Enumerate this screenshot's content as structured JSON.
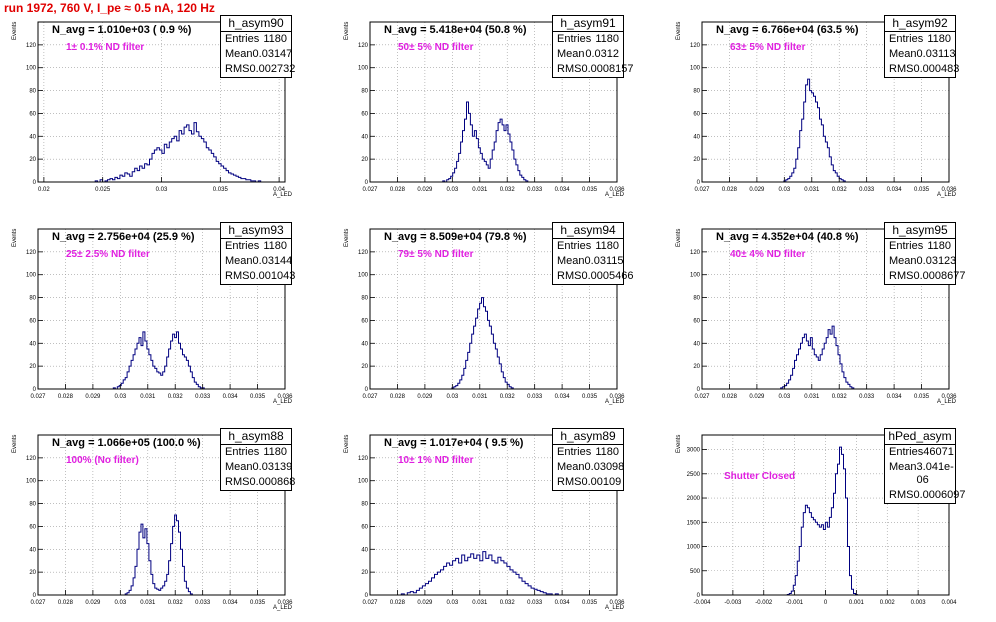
{
  "page_title": "run 1972,   760 V, I_pe ≈ 0.5 nA, 120 Hz",
  "colors": {
    "title": "#e00000",
    "annotation": "#e020e0",
    "hist": "#000080",
    "grid": "#999999"
  },
  "chart_data": [
    {
      "type": "histogram",
      "title": "h_asym90",
      "navg": "N_avg = 1.010e+03 ( 0.9 %)",
      "annotation": "1± 0.1% ND filter",
      "ylabel": "Events",
      "xlabel": "A_LED",
      "stats": {
        "entries": "1180",
        "mean": "0.03147",
        "rms": "0.002732"
      },
      "xlim": [
        0.0195,
        0.0405
      ],
      "ylim": [
        0,
        140
      ],
      "xticks": [
        0.02,
        0.025,
        0.03,
        0.035,
        0.04
      ],
      "xtick_labels": [
        "0.02",
        "0.025",
        "0.03",
        "0.035",
        "0.04"
      ],
      "yticks": [
        0,
        20,
        40,
        60,
        80,
        100,
        120
      ],
      "bins": {
        "center": 0.0315,
        "step": 0.00021,
        "values": [
          1,
          0,
          2,
          0,
          1,
          2,
          3,
          2,
          4,
          3,
          6,
          5,
          8,
          7,
          5,
          9,
          12,
          10,
          14,
          12,
          16,
          15,
          20,
          25,
          28,
          30,
          28,
          25,
          33,
          30,
          35,
          38,
          40,
          36,
          45,
          42,
          48,
          50,
          45,
          42,
          52,
          44,
          40,
          38,
          35,
          30,
          28,
          25,
          22,
          18,
          16,
          14,
          12,
          10,
          8,
          7,
          6,
          5,
          4,
          3,
          3,
          2,
          2,
          1,
          1,
          0,
          1,
          0
        ]
      }
    },
    {
      "type": "histogram",
      "title": "h_asym91",
      "navg": "N_avg = 5.418e+04 (50.8 %)",
      "annotation": "50± 5% ND filter",
      "ylabel": "Events",
      "xlabel": "A_LED",
      "stats": {
        "entries": "1180",
        "mean": "0.0312",
        "rms": "0.0008157"
      },
      "xlim": [
        0.027,
        0.036
      ],
      "ylim": [
        0,
        140
      ],
      "xticks": [
        0.027,
        0.028,
        0.029,
        0.03,
        0.031,
        0.032,
        0.033,
        0.034,
        0.035,
        0.036
      ],
      "xtick_labels": [
        "0.027",
        "0.028",
        "0.029",
        "0.03",
        "0.031",
        "0.032",
        "0.033",
        "0.034",
        "0.035",
        "0.036"
      ],
      "yticks": [
        0,
        20,
        40,
        60,
        80,
        100,
        120
      ],
      "bins": {
        "center": 0.0312,
        "step": 7.2e-05,
        "values": [
          1,
          0,
          2,
          3,
          5,
          8,
          12,
          18,
          25,
          35,
          45,
          55,
          70,
          60,
          50,
          40,
          45,
          38,
          30,
          25,
          20,
          18,
          15,
          12,
          20,
          28,
          35,
          45,
          52,
          55,
          50,
          45,
          50,
          42,
          35,
          28,
          20,
          15,
          10,
          6,
          4,
          2,
          1
        ]
      }
    },
    {
      "type": "histogram",
      "title": "h_asym92",
      "navg": "N_avg = 6.766e+04 (63.5 %)",
      "annotation": "63± 5% ND filter",
      "ylabel": "Events",
      "xlabel": "A_LED",
      "stats": {
        "entries": "1180",
        "mean": "0.03113",
        "rms": "0.000483"
      },
      "xlim": [
        0.027,
        0.036
      ],
      "ylim": [
        0,
        140
      ],
      "xticks": [
        0.027,
        0.028,
        0.029,
        0.03,
        0.031,
        0.032,
        0.033,
        0.034,
        0.035,
        0.036
      ],
      "xtick_labels": [
        "0.027",
        "0.028",
        "0.029",
        "0.03",
        "0.031",
        "0.032",
        "0.033",
        "0.034",
        "0.035",
        "0.036"
      ],
      "yticks": [
        0,
        20,
        40,
        60,
        80,
        100,
        120
      ],
      "bins": {
        "center": 0.0311,
        "step": 7.2e-05,
        "values": [
          1,
          2,
          3,
          5,
          8,
          12,
          20,
          30,
          45,
          55,
          70,
          85,
          90,
          80,
          78,
          75,
          70,
          65,
          55,
          50,
          40,
          35,
          30,
          22,
          15,
          10,
          8,
          5,
          3,
          2,
          1
        ]
      }
    },
    {
      "type": "histogram",
      "title": "h_asym93",
      "navg": "N_avg = 2.756e+04 (25.9 %)",
      "annotation": "25± 2.5% ND filter",
      "ylabel": "Events",
      "xlabel": "A_LED",
      "stats": {
        "entries": "1180",
        "mean": "0.03144",
        "rms": "0.001043"
      },
      "xlim": [
        0.027,
        0.036
      ],
      "ylim": [
        0,
        140
      ],
      "xticks": [
        0.027,
        0.028,
        0.029,
        0.03,
        0.031,
        0.032,
        0.033,
        0.034,
        0.035,
        0.036
      ],
      "xtick_labels": [
        "0.027",
        "0.028",
        "0.029",
        "0.03",
        "0.031",
        "0.032",
        "0.033",
        "0.034",
        "0.035",
        "0.036"
      ],
      "yticks": [
        0,
        20,
        40,
        60,
        80,
        100,
        120
      ],
      "bins": {
        "center": 0.0314,
        "step": 7.2e-05,
        "values": [
          1,
          0,
          2,
          3,
          5,
          8,
          10,
          15,
          20,
          25,
          30,
          35,
          40,
          45,
          38,
          50,
          42,
          35,
          30,
          25,
          20,
          18,
          15,
          14,
          12,
          15,
          20,
          28,
          35,
          42,
          48,
          45,
          50,
          40,
          35,
          30,
          28,
          25,
          20,
          15,
          10,
          6,
          4,
          2,
          1,
          1
        ]
      }
    },
    {
      "type": "histogram",
      "title": "h_asym94",
      "navg": "N_avg = 8.509e+04 (79.8 %)",
      "annotation": "79± 5% ND filter",
      "ylabel": "Events",
      "xlabel": "A_LED",
      "stats": {
        "entries": "1180",
        "mean": "0.03115",
        "rms": "0.0005466"
      },
      "xlim": [
        0.027,
        0.036
      ],
      "ylim": [
        0,
        140
      ],
      "xticks": [
        0.027,
        0.028,
        0.029,
        0.03,
        0.031,
        0.032,
        0.033,
        0.034,
        0.035,
        0.036
      ],
      "xtick_labels": [
        "0.027",
        "0.028",
        "0.029",
        "0.03",
        "0.031",
        "0.032",
        "0.033",
        "0.034",
        "0.035",
        "0.036"
      ],
      "yticks": [
        0,
        20,
        40,
        60,
        80,
        100,
        120
      ],
      "bins": {
        "center": 0.0311,
        "step": 7.2e-05,
        "values": [
          1,
          2,
          3,
          5,
          8,
          12,
          18,
          25,
          32,
          40,
          48,
          55,
          62,
          70,
          75,
          80,
          72,
          68,
          60,
          55,
          48,
          40,
          35,
          28,
          22,
          15,
          10,
          6,
          4,
          2,
          1
        ]
      }
    },
    {
      "type": "histogram",
      "title": "h_asym95",
      "navg": "N_avg = 4.352e+04 (40.8 %)",
      "annotation": "40± 4% ND filter",
      "ylabel": "Events",
      "xlabel": "A_LED",
      "stats": {
        "entries": "1180",
        "mean": "0.03123",
        "rms": "0.0008677"
      },
      "xlim": [
        0.027,
        0.036
      ],
      "ylim": [
        0,
        140
      ],
      "xticks": [
        0.027,
        0.028,
        0.029,
        0.03,
        0.031,
        0.032,
        0.033,
        0.034,
        0.035,
        0.036
      ],
      "xtick_labels": [
        "0.027",
        "0.028",
        "0.029",
        "0.03",
        "0.031",
        "0.032",
        "0.033",
        "0.034",
        "0.035",
        "0.036"
      ],
      "yticks": [
        0,
        20,
        40,
        60,
        80,
        100,
        120
      ],
      "bins": {
        "center": 0.0312,
        "step": 7.2e-05,
        "values": [
          1,
          2,
          3,
          5,
          8,
          12,
          18,
          25,
          30,
          35,
          40,
          45,
          48,
          42,
          38,
          45,
          35,
          30,
          28,
          25,
          30,
          35,
          40,
          45,
          52,
          48,
          55,
          45,
          38,
          30,
          22,
          15,
          10,
          6,
          4,
          2,
          1
        ]
      }
    },
    {
      "type": "histogram",
      "title": "h_asym88",
      "navg": "N_avg = 1.066e+05 (100.0 %)",
      "annotation": "100% (No filter)",
      "ylabel": "Events",
      "xlabel": "A_LED",
      "stats": {
        "entries": "1180",
        "mean": "0.03139",
        "rms": "0.000868"
      },
      "xlim": [
        0.027,
        0.036
      ],
      "ylim": [
        0,
        140
      ],
      "xticks": [
        0.027,
        0.028,
        0.029,
        0.03,
        0.031,
        0.032,
        0.033,
        0.034,
        0.035,
        0.036
      ],
      "xtick_labels": [
        "0.027",
        "0.028",
        "0.029",
        "0.03",
        "0.031",
        "0.032",
        "0.033",
        "0.034",
        "0.035",
        "0.036"
      ],
      "yticks": [
        0,
        20,
        40,
        60,
        80,
        100,
        120
      ],
      "bins": {
        "center": 0.0314,
        "step": 7.2e-05,
        "values": [
          1,
          2,
          4,
          8,
          15,
          25,
          40,
          55,
          62,
          50,
          58,
          45,
          30,
          18,
          10,
          6,
          5,
          4,
          6,
          8,
          12,
          18,
          30,
          45,
          60,
          70,
          65,
          55,
          40,
          25,
          12,
          6,
          3,
          1
        ]
      }
    },
    {
      "type": "histogram",
      "title": "h_asym89",
      "navg": "N_avg = 1.017e+04 ( 9.5 %)",
      "annotation": "10± 1% ND filter",
      "ylabel": "Events",
      "xlabel": "A_LED",
      "stats": {
        "entries": "1180",
        "mean": "0.03098",
        "rms": "0.00109"
      },
      "xlim": [
        0.027,
        0.036
      ],
      "ylim": [
        0,
        140
      ],
      "xticks": [
        0.027,
        0.028,
        0.029,
        0.03,
        0.031,
        0.032,
        0.033,
        0.034,
        0.035,
        0.036
      ],
      "xtick_labels": [
        "0.027",
        "0.028",
        "0.029",
        "0.03",
        "0.031",
        "0.032",
        "0.033",
        "0.034",
        "0.035",
        "0.036"
      ],
      "yticks": [
        0,
        20,
        40,
        60,
        80,
        100,
        120
      ],
      "bins": {
        "center": 0.031,
        "step": 0.00011,
        "values": [
          1,
          0,
          2,
          3,
          2,
          4,
          6,
          8,
          10,
          12,
          15,
          18,
          20,
          22,
          25,
          28,
          26,
          30,
          32,
          28,
          35,
          30,
          33,
          36,
          32,
          35,
          30,
          38,
          32,
          35,
          30,
          28,
          33,
          30,
          28,
          25,
          22,
          20,
          18,
          15,
          12,
          10,
          8,
          6,
          5,
          4,
          3,
          2,
          1,
          1,
          0,
          1
        ]
      }
    },
    {
      "type": "histogram",
      "title": "hPed_asym",
      "navg": "",
      "annotation": "Shutter Closed",
      "ylabel": "Events",
      "xlabel": "",
      "stats": {
        "entries": "46071",
        "mean": "3.041e-06",
        "rms": "0.0006097"
      },
      "xlim": [
        -0.004,
        0.004
      ],
      "ylim": [
        0,
        3300
      ],
      "xticks": [
        -0.004,
        -0.003,
        -0.002,
        -0.001,
        0,
        0.001,
        0.002,
        0.003,
        0.004
      ],
      "xtick_labels": [
        "-0.004",
        "-0.003",
        "-0.002",
        "-0.001",
        "0",
        "0.001",
        "0.002",
        "0.003",
        "0.004"
      ],
      "yticks": [
        0,
        500,
        1000,
        1500,
        2000,
        2500,
        3000
      ],
      "bins": {
        "center": -0.0001,
        "step": 6.5e-05,
        "values": [
          10,
          30,
          80,
          200,
          400,
          700,
          1000,
          1400,
          1700,
          1850,
          1800,
          1700,
          1600,
          1550,
          1500,
          1450,
          1400,
          1450,
          1350,
          1500,
          1400,
          1600,
          1800,
          2100,
          2500,
          2700,
          3050,
          2900,
          2600,
          2000,
          1000,
          400,
          120,
          30,
          8
        ]
      }
    }
  ]
}
